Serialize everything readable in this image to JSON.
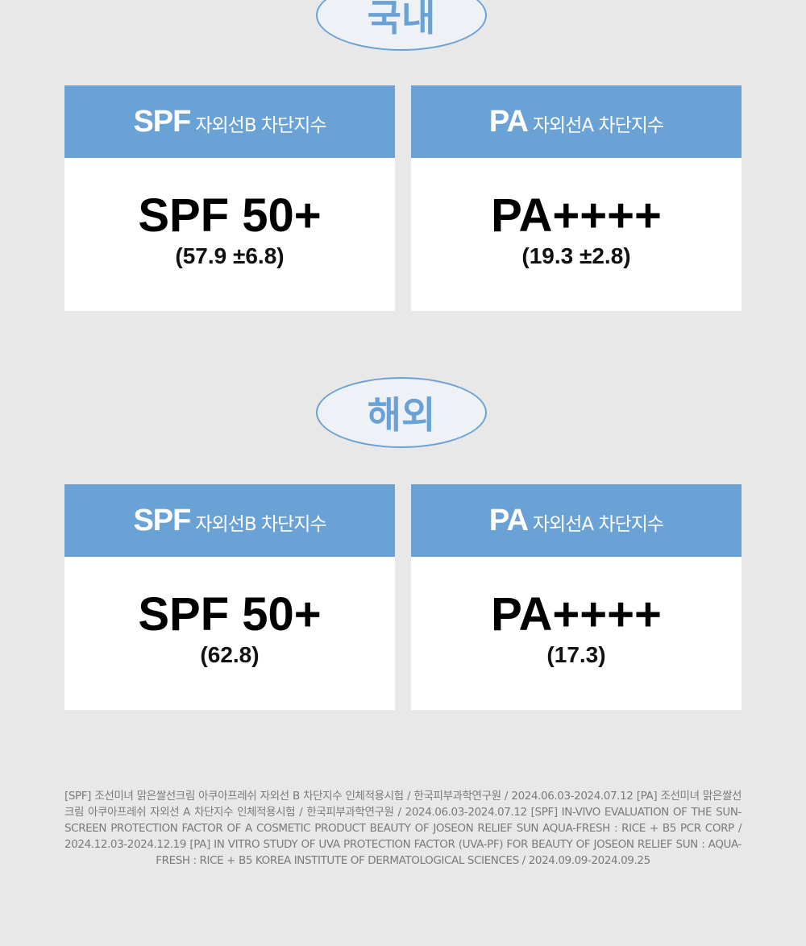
{
  "sections": [
    {
      "label": "국내",
      "cards": [
        {
          "abbr": "SPF",
          "desc": "자외선B 차단지수",
          "value": "SPF 50+",
          "detail": "(57.9 ±6.8)"
        },
        {
          "abbr": "PA",
          "desc": "자외선A 차단지수",
          "value": "PA++++",
          "detail": "(19.3 ±2.8)"
        }
      ]
    },
    {
      "label": "해외",
      "cards": [
        {
          "abbr": "SPF",
          "desc": "자외선B 차단지수",
          "value": "SPF 50+",
          "detail": "(62.8)"
        },
        {
          "abbr": "PA",
          "desc": "자외선A 차단지수",
          "value": "PA++++",
          "detail": "(17.3)"
        }
      ]
    }
  ],
  "footnote": "[SPF] 조선미녀 맑은쌀선크림 아쿠아프레쉬 자외선 B 차단지수 인체적용시험 / 한국피부과학연구원 / 2024.06.03-2024.07.12 [PA] 조선미녀 맑은쌀선크림 아쿠아프레쉬 자외선 A 차단지수 인체적용시험 / 한국피부과학연구원 / 2024.06.03-2024.07.12 [SPF] IN-VIVO EVALUATION OF THE SUN-SCREEN PROTECTION FACTOR OF A COSMETIC PRODUCT BEAUTY OF JOSEON RELIEF SUN AQUA-FRESH : RICE + B5 PCR CORP / 2024.12.03-2024.12.19 [PA] IN VITRO STUDY OF UVA PROTECTION FACTOR (UVA-PF) FOR BEAUTY OF JOSEON RELIEF SUN : AQUA-FRESH : RICE + B5 KOREA INSTITUTE OF DERMATOLOGICAL SCIENCES / 2024.09.09-2024.09.25"
}
